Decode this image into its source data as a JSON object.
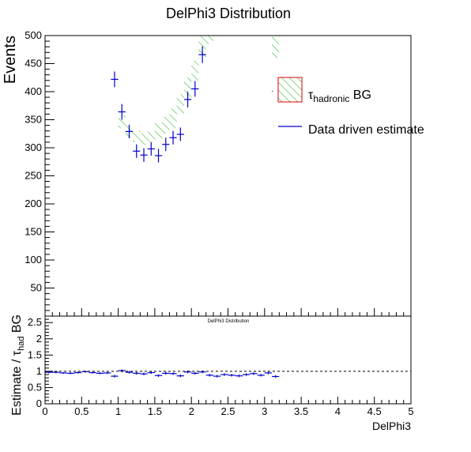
{
  "colors": {
    "data": "#0000cc",
    "band_hatch": "#33bb33",
    "band_box": "#dd0000",
    "axis": "#000000"
  },
  "chart_data": [
    {
      "type": "scatter",
      "title": "DelPhi3 Distribution",
      "ylabel": "Events",
      "xlim": [
        0,
        5
      ],
      "ylim": [
        0,
        500
      ],
      "y_ticks": [
        50,
        100,
        150,
        200,
        250,
        300,
        350,
        400,
        450,
        500
      ],
      "legend": {
        "placement": "top-right",
        "items": [
          {
            "main": "τ",
            "sub": "hadronic",
            "rest": " BG"
          },
          {
            "label": "Data driven estimate"
          }
        ]
      },
      "series": [
        {
          "name": "Data driven estimate",
          "kind": "points_with_errors",
          "x": [
            0.95,
            1.05,
            1.15,
            1.25,
            1.35,
            1.45,
            1.55,
            1.65,
            1.75,
            1.85,
            1.95,
            2.05,
            2.15
          ],
          "y": [
            422,
            364,
            329,
            294,
            287,
            298,
            286,
            306,
            318,
            324,
            386,
            405,
            466
          ],
          "yerr": [
            14,
            14,
            12,
            12,
            12,
            12,
            12,
            12,
            12,
            12,
            14,
            14,
            15
          ],
          "xerr": 0.05
        },
        {
          "name": "τhadronic BG",
          "kind": "hatched_band",
          "x": [
            1.05,
            1.15,
            1.25,
            1.35,
            1.45,
            1.55,
            1.65,
            1.75,
            1.85,
            1.95,
            2.05,
            2.15,
            2.25,
            3.15
          ],
          "y_low": [
            335,
            318,
            310,
            305,
            310,
            315,
            325,
            335,
            360,
            390,
            420,
            460,
            485,
            460
          ],
          "y_high": [
            358,
            340,
            330,
            325,
            330,
            345,
            355,
            370,
            395,
            425,
            455,
            500,
            500,
            500
          ],
          "xwidth": 0.1
        }
      ]
    },
    {
      "type": "scatter",
      "title": "DelPhi3 Distribution",
      "xlabel": "DelPhi3",
      "ylabel_main": "Estimate / τ",
      "ylabel_sub": "had",
      "ylabel_rest": " BG",
      "xlim": [
        0,
        5
      ],
      "ylim": [
        0,
        2.7
      ],
      "x_ticks": [
        "0",
        "0.5",
        "1",
        "1.5",
        "2",
        "2.5",
        "3",
        "3.5",
        "4",
        "4.5",
        "5"
      ],
      "y_ticks": [
        "0",
        "0.5",
        "1",
        "1.5",
        "2",
        "2.5"
      ],
      "reference_line": 1,
      "series": [
        {
          "kind": "points_with_errors",
          "x": [
            0.05,
            0.15,
            0.25,
            0.35,
            0.45,
            0.55,
            0.65,
            0.75,
            0.85,
            0.95,
            1.05,
            1.15,
            1.25,
            1.35,
            1.45,
            1.55,
            1.65,
            1.75,
            1.85,
            1.95,
            2.05,
            2.15,
            2.25,
            2.35,
            2.45,
            2.55,
            2.65,
            2.75,
            2.85,
            2.95,
            3.05,
            3.15
          ],
          "y": [
            0.97,
            0.97,
            0.95,
            0.94,
            0.96,
            0.99,
            0.96,
            0.94,
            0.95,
            0.85,
            1.02,
            0.97,
            0.94,
            0.92,
            0.96,
            0.87,
            0.94,
            0.93,
            0.86,
            0.98,
            0.94,
            0.98,
            0.88,
            0.85,
            0.9,
            0.88,
            0.86,
            0.9,
            0.93,
            0.88,
            0.95,
            0.84
          ],
          "yerr": [
            0.03,
            0.03,
            0.03,
            0.03,
            0.03,
            0.03,
            0.03,
            0.03,
            0.03,
            0.04,
            0.04,
            0.04,
            0.04,
            0.04,
            0.04,
            0.04,
            0.04,
            0.04,
            0.04,
            0.04,
            0.04,
            0.04,
            0.04,
            0.04,
            0.04,
            0.04,
            0.04,
            0.04,
            0.04,
            0.04,
            0.04,
            0.04
          ],
          "xerr": 0.05
        }
      ]
    }
  ]
}
